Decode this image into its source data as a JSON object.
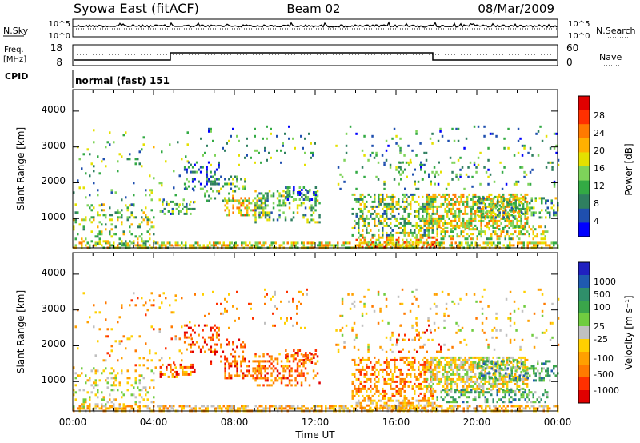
{
  "header": {
    "title": "Syowa East (fitACF)",
    "beam": "Beam 02",
    "date": "08/Mar/2009"
  },
  "noise_panel": {
    "left_label": "N.Sky",
    "right_label": "N.Search",
    "left_ticks": [
      "10^5",
      "10^0"
    ],
    "right_ticks": [
      "10^5",
      "10^0"
    ]
  },
  "freq_panel": {
    "left_label_1": "Freq.",
    "left_label_2": "[MHz]",
    "left_ticks": [
      "18",
      "8"
    ],
    "right_label": "Nave",
    "right_ticks": [
      "60",
      "0"
    ]
  },
  "cpid_panel": {
    "label": "CPID",
    "mode_text": "normal (fast) 151"
  },
  "chart_data": [
    {
      "type": "heatmap",
      "name_key": "power",
      "ylabel": "Slant Range [km]",
      "xlabel": "",
      "yticks": [
        "1000",
        "2000",
        "3000",
        "4000"
      ],
      "ylim": [
        180,
        4600
      ],
      "xlim_hours": [
        0,
        24
      ],
      "colorbar": {
        "label": "Power [dB]",
        "ticks": [
          "4",
          "8",
          "12",
          "16",
          "20",
          "24",
          "28"
        ],
        "range": [
          0,
          30
        ],
        "colors": [
          "#0000ff",
          "#1f4faf",
          "#2f7f60",
          "#33aa44",
          "#7ed35a",
          "#e4e000",
          "#ffb000",
          "#ff7a00",
          "#ff3000",
          "#e00000"
        ]
      }
    },
    {
      "type": "heatmap",
      "name_key": "velocity",
      "ylabel": "Slant Range [km]",
      "xlabel": "Time UT",
      "yticks": [
        "1000",
        "2000",
        "3000",
        "4000"
      ],
      "ylim": [
        180,
        4600
      ],
      "xlim_hours": [
        0,
        24
      ],
      "xticks": [
        "00:00",
        "04:00",
        "08:00",
        "12:00",
        "16:00",
        "20:00",
        "00:00"
      ],
      "colorbar": {
        "label": "Velocity [m s⁻¹]",
        "ticks": [
          "1000",
          "500",
          "100",
          "25",
          "-25",
          "-100",
          "-500",
          "-1000"
        ],
        "colors": [
          "#2020c0",
          "#1f5ab0",
          "#2f8f6a",
          "#3aa54a",
          "#70cc40",
          "#c0c0c0",
          "#ffd000",
          "#ffa000",
          "#ff7a00",
          "#ff3000",
          "#e00000"
        ]
      }
    }
  ]
}
